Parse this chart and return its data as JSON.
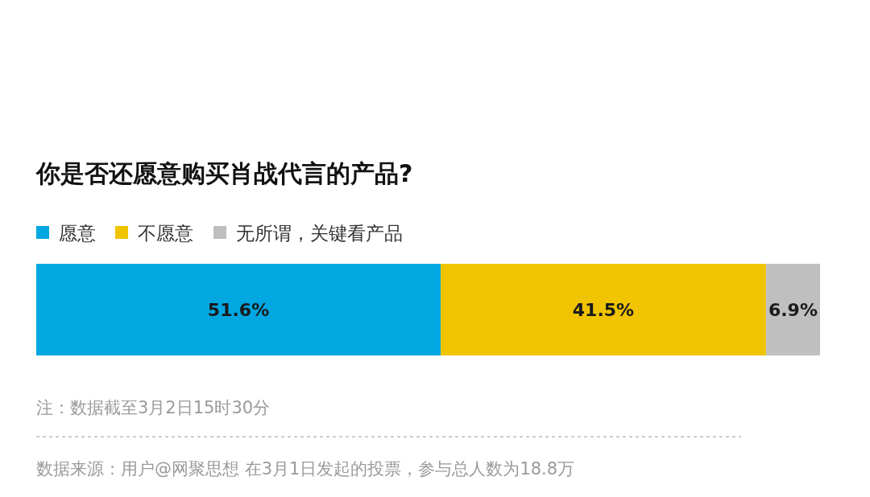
{
  "chart_data": {
    "type": "bar",
    "title": "你是否还愿意购买肖战代言的产品?",
    "categories": [
      null
    ],
    "orientation": "horizontal",
    "stacked": true,
    "legend": "top left",
    "series": [
      {
        "name": "愿意",
        "color": "#00a7e1",
        "values": [
          51.6
        ],
        "value_labels": [
          "51.6%"
        ]
      },
      {
        "name": "不愿意",
        "color": "#f0c400",
        "values": [
          41.5
        ],
        "value_labels": [
          "41.5%"
        ]
      },
      {
        "name": "无所谓，关键看产品",
        "color": "#c0bfbf",
        "values": [
          6.9
        ],
        "value_labels": [
          "6.9%"
        ]
      }
    ],
    "annotations": [
      "注：数据截至3月2日15时30分",
      "数据来源：用户@网聚思想 在3月1日发起的投票，参与总人数为18.8万"
    ]
  }
}
